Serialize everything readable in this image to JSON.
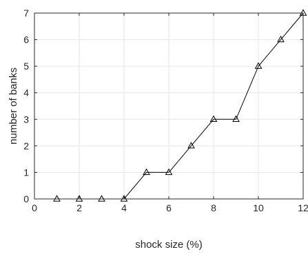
{
  "chart_data": {
    "type": "line",
    "title": "",
    "xlabel": "shock size (%)",
    "ylabel": "number of banks",
    "xlim": [
      0,
      12
    ],
    "ylim": [
      0,
      7
    ],
    "xticks": [
      0,
      2,
      4,
      6,
      8,
      10,
      12
    ],
    "yticks": [
      0,
      1,
      2,
      3,
      4,
      5,
      6,
      7
    ],
    "grid": true,
    "marker": "triangle",
    "line_color": "#000000",
    "x": [
      1,
      2,
      3,
      4,
      5,
      6,
      7,
      8,
      9,
      10,
      11,
      12
    ],
    "series": [
      {
        "values": [
          0,
          0,
          0,
          0,
          1,
          1,
          2,
          3,
          3,
          5,
          6,
          7
        ]
      }
    ]
  }
}
